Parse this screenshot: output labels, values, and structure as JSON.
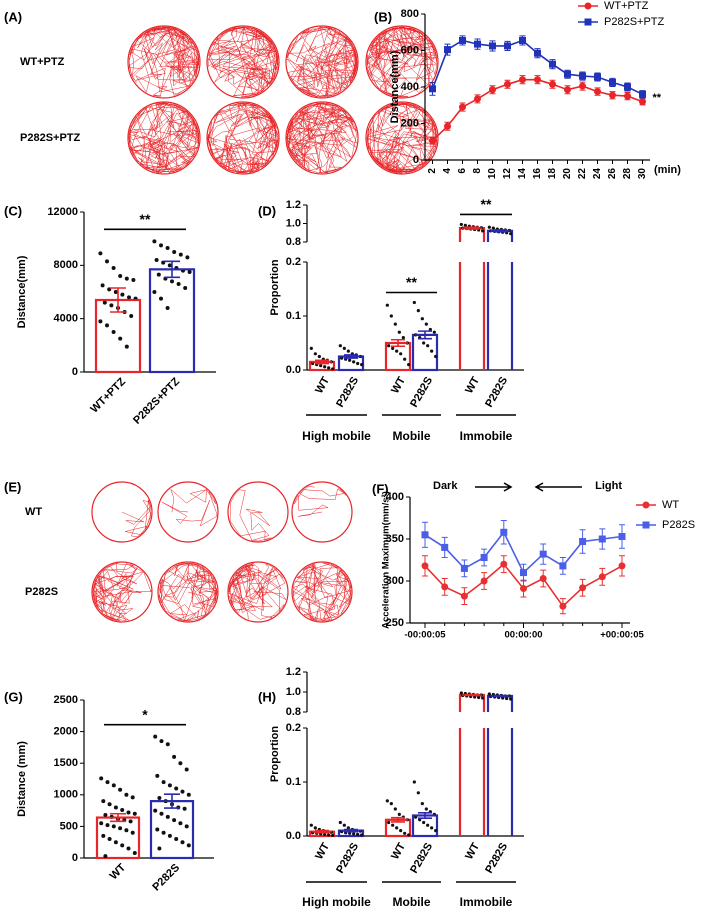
{
  "chart_data": [
    {
      "type": "trajectory",
      "label": "(A)",
      "rows": [
        "WT+PTZ",
        "P282S+PTZ"
      ],
      "color": "#e8262a"
    },
    {
      "type": "line",
      "label": "(B)",
      "ylabel": "Distance(mm)",
      "xlabel": "(min)",
      "annotation": "**",
      "x": [
        2,
        4,
        6,
        8,
        10,
        12,
        14,
        16,
        18,
        20,
        22,
        24,
        26,
        28,
        30
      ],
      "xlim": [
        1,
        31
      ],
      "xticks": [
        2,
        4,
        6,
        8,
        10,
        12,
        14,
        16,
        18,
        20,
        22,
        24,
        26,
        28,
        30
      ],
      "ylim": [
        0,
        800
      ],
      "yticks": [
        0,
        200,
        400,
        600,
        800
      ],
      "series": [
        {
          "name": "WT+PTZ",
          "color": "#e8262a",
          "marker": "circle",
          "values": [
            105,
            185,
            290,
            335,
            385,
            415,
            440,
            440,
            415,
            385,
            405,
            375,
            355,
            350,
            320
          ],
          "errors": [
            18,
            22,
            22,
            22,
            22,
            22,
            22,
            22,
            22,
            22,
            22,
            20,
            20,
            20,
            18
          ]
        },
        {
          "name": "P282S+PTZ",
          "color": "#2233b8",
          "marker": "square",
          "values": [
            390,
            605,
            655,
            635,
            625,
            625,
            655,
            585,
            525,
            470,
            460,
            455,
            425,
            400,
            360
          ],
          "errors": [
            35,
            30,
            25,
            28,
            28,
            25,
            25,
            25,
            25,
            22,
            22,
            22,
            22,
            22,
            20
          ]
        }
      ]
    },
    {
      "type": "bar",
      "label": "(C)",
      "ylabel": "Distance(mm)",
      "annotation": "**",
      "categories": [
        "WT+PTZ",
        "P282S+PTZ"
      ],
      "values": [
        5400,
        7700
      ],
      "errors": [
        900,
        600
      ],
      "colors": [
        "#e8262a",
        "#2b2bb0"
      ],
      "points": [
        [
          8900,
          8300,
          7800,
          7200,
          7000,
          6900,
          6500,
          6200,
          6000,
          5800,
          5600,
          5500,
          5200,
          5000,
          4800,
          4500,
          4200,
          3800,
          3500,
          3000,
          2500,
          1900
        ],
        [
          9800,
          9500,
          9300,
          9000,
          8800,
          8600,
          8400,
          8200,
          8000,
          7800,
          7600,
          7500,
          7300,
          7000,
          6800,
          6600,
          6300,
          6000,
          5500,
          4800
        ]
      ],
      "ylim": [
        0,
        12000
      ],
      "yticks": [
        0,
        4000,
        8000,
        12000
      ]
    },
    {
      "type": "broken_bar",
      "label": "(D)",
      "ylabel": "Proportion",
      "categories": [
        "WT",
        "P282S",
        "WT",
        "P282S",
        "WT",
        "P282S"
      ],
      "groups": [
        {
          "name": "High mobile"
        },
        {
          "name": "Mobile",
          "annotation": "**"
        },
        {
          "name": "Immobile",
          "annotation": "**"
        }
      ],
      "values": [
        0.015,
        0.025,
        0.05,
        0.065,
        0.95,
        0.92
      ],
      "errors": [
        0.003,
        0.003,
        0.006,
        0.007,
        0.01,
        0.01
      ],
      "colors": [
        "#e8262a",
        "#2b2bb0",
        "#e8262a",
        "#2b2bb0",
        "#e8262a",
        "#2b2bb0"
      ],
      "points": [
        [
          0.04,
          0.03,
          0.025,
          0.02,
          0.018,
          0.015,
          0.012,
          0.01,
          0.008,
          0.006,
          0.004,
          0.002
        ],
        [
          0.045,
          0.04,
          0.035,
          0.03,
          0.028,
          0.025,
          0.022,
          0.02,
          0.018,
          0.015,
          0.012,
          0.01
        ],
        [
          0.12,
          0.1,
          0.085,
          0.07,
          0.06,
          0.05,
          0.045,
          0.04,
          0.035,
          0.03,
          0.02,
          0.01
        ],
        [
          0.125,
          0.11,
          0.095,
          0.085,
          0.075,
          0.07,
          0.065,
          0.06,
          0.05,
          0.045,
          0.035,
          0.025
        ],
        [
          0.99,
          0.98,
          0.97,
          0.965,
          0.96,
          0.955,
          0.95,
          0.945,
          0.94,
          0.935,
          0.93,
          0.92
        ],
        [
          0.96,
          0.95,
          0.94,
          0.935,
          0.93,
          0.925,
          0.92,
          0.915,
          0.91,
          0.905,
          0.9,
          0.89
        ]
      ],
      "ylim": [
        0,
        1.2
      ],
      "ybreak": [
        0.2,
        0.8
      ],
      "yticks": [
        {
          "value": 0,
          "label": "0.0"
        },
        0.1,
        0.2,
        0.8,
        {
          "value": 1,
          "label": "1.0"
        },
        1.2
      ]
    },
    {
      "type": "trajectory",
      "label": "(E)",
      "rows": [
        "WT",
        "P282S"
      ],
      "color": "#e8262a"
    },
    {
      "type": "line",
      "label": "(F)",
      "ylabel": "Acceleration Maximum(mm/s²)",
      "annotations": [
        "Dark",
        "Light"
      ],
      "categories": [
        "-00:00:05",
        null,
        null,
        null,
        null,
        "00:00:00",
        null,
        null,
        null,
        null,
        "+00:00:05"
      ],
      "ylim": [
        250,
        400
      ],
      "yticks": [
        250,
        300,
        350,
        400
      ],
      "series": [
        {
          "name": "WT",
          "color": "#e83030",
          "marker": "circle",
          "values": [
            318,
            293,
            282,
            300,
            320,
            291,
            303,
            270,
            292,
            305,
            318
          ],
          "errors": [
            12,
            10,
            10,
            10,
            10,
            10,
            10,
            9,
            10,
            10,
            12
          ]
        },
        {
          "name": "P282S",
          "color": "#4a5ee8",
          "marker": "square",
          "values": [
            355,
            340,
            315,
            328,
            358,
            310,
            332,
            318,
            347,
            350,
            353
          ],
          "errors": [
            15,
            12,
            10,
            10,
            14,
            10,
            12,
            10,
            14,
            12,
            14
          ]
        }
      ]
    },
    {
      "type": "bar",
      "label": "(G)",
      "ylabel": "Distance (mm)",
      "annotation": "*",
      "categories": [
        "WT",
        "P282S"
      ],
      "values": [
        640,
        900
      ],
      "errors": [
        60,
        110
      ],
      "colors": [
        "#e8262a",
        "#2b2bb0"
      ],
      "points": [
        [
          1260,
          1200,
          1150,
          1080,
          1000,
          960,
          900,
          850,
          800,
          760,
          720,
          700,
          680,
          650,
          620,
          600,
          580,
          550,
          520,
          500,
          470,
          440,
          400,
          350,
          300,
          250,
          200,
          150,
          80,
          30
        ],
        [
          1920,
          1850,
          1800,
          1600,
          1500,
          1400,
          1300,
          1200,
          1150,
          1100,
          1050,
          1000,
          950,
          900,
          850,
          800,
          780,
          750,
          700,
          650,
          600,
          550,
          500,
          450,
          400,
          350,
          300,
          250,
          200,
          150
        ]
      ],
      "ylim": [
        0,
        2500
      ],
      "yticks": [
        0,
        500,
        1000,
        1500,
        2000,
        2500
      ]
    },
    {
      "type": "broken_bar",
      "label": "(H)",
      "ylabel": "Proportion",
      "categories": [
        "WT",
        "P282S",
        "WT",
        "P282S",
        "WT",
        "P282S"
      ],
      "groups": [
        {
          "name": "High mobile"
        },
        {
          "name": "Mobile"
        },
        {
          "name": "Immobile"
        }
      ],
      "values": [
        0.008,
        0.01,
        0.03,
        0.038,
        0.97,
        0.96
      ],
      "errors": [
        0.002,
        0.002,
        0.004,
        0.005,
        0.005,
        0.005
      ],
      "colors": [
        "#e8262a",
        "#2b2bb0",
        "#e8262a",
        "#2b2bb0",
        "#e8262a",
        "#2b2bb0"
      ],
      "points": [
        [
          0.02,
          0.015,
          0.012,
          0.01,
          0.008,
          0.007,
          0.006,
          0.005,
          0.004,
          0.003,
          0.002,
          0.001
        ],
        [
          0.025,
          0.02,
          0.015,
          0.012,
          0.01,
          0.009,
          0.008,
          0.006,
          0.005,
          0.004,
          0.003,
          0.002
        ],
        [
          0.065,
          0.06,
          0.05,
          0.04,
          0.035,
          0.03,
          0.025,
          0.02,
          0.015,
          0.01,
          0.005,
          0.002
        ],
        [
          0.1,
          0.08,
          0.06,
          0.05,
          0.045,
          0.04,
          0.035,
          0.03,
          0.025,
          0.02,
          0.015,
          0.01
        ],
        [
          0.99,
          0.985,
          0.98,
          0.975,
          0.97,
          0.97,
          0.965,
          0.96,
          0.955,
          0.95,
          0.945,
          0.94
        ],
        [
          0.98,
          0.975,
          0.97,
          0.965,
          0.96,
          0.96,
          0.955,
          0.95,
          0.945,
          0.94,
          0.935,
          0.93
        ]
      ],
      "ylim": [
        0,
        1.2
      ],
      "ybreak": [
        0.2,
        0.8
      ],
      "yticks": [
        {
          "value": 0,
          "label": "0.0"
        },
        0.1,
        0.2,
        0.8,
        {
          "value": 1,
          "label": "1.0"
        },
        1.2
      ]
    }
  ]
}
